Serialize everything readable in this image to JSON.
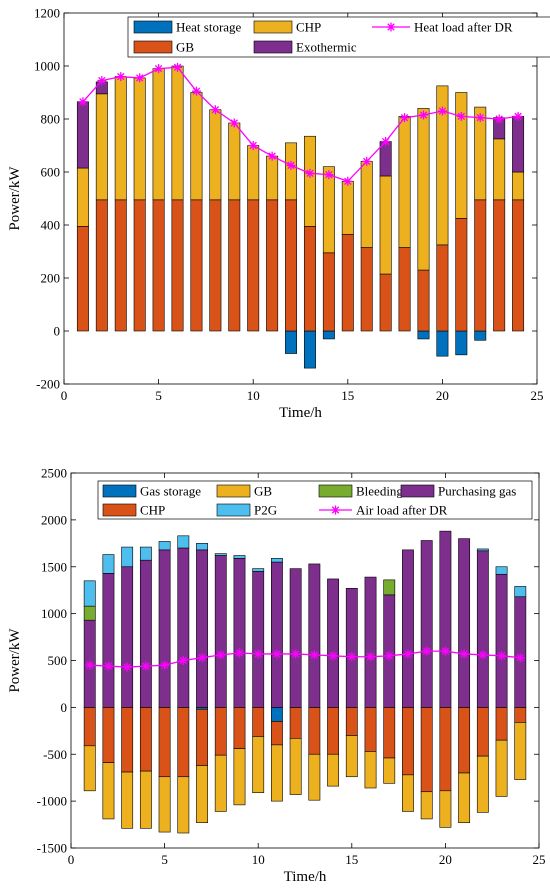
{
  "chart_data": [
    {
      "type": "bar",
      "stacked": true,
      "xlabel": "Time/h",
      "ylabel": "Power/kW",
      "xlim": [
        0,
        25
      ],
      "ylim": [
        -200,
        1200
      ],
      "xticks": [
        0,
        5,
        10,
        15,
        20,
        25
      ],
      "yticks": [
        -200,
        0,
        200,
        400,
        600,
        800,
        1000,
        1200
      ],
      "x": [
        1,
        2,
        3,
        4,
        5,
        6,
        7,
        8,
        9,
        10,
        11,
        12,
        13,
        14,
        15,
        16,
        17,
        18,
        19,
        20,
        21,
        22,
        23,
        24
      ],
      "legend_position": "top",
      "legend_rows": [
        [
          "Heat storage",
          "CHP",
          "Heat load after DR"
        ],
        [
          "GB",
          "Exothermic"
        ]
      ],
      "series": [
        {
          "name": "Heat storage",
          "color": "#0072BD",
          "values": [
            0,
            0,
            0,
            0,
            0,
            0,
            0,
            0,
            0,
            0,
            0,
            -85,
            -140,
            -30,
            0,
            0,
            0,
            0,
            -30,
            -95,
            -90,
            -35,
            0,
            0
          ]
        },
        {
          "name": "GB",
          "color": "#D95319",
          "values": [
            395,
            495,
            495,
            495,
            495,
            495,
            495,
            495,
            495,
            495,
            495,
            495,
            395,
            295,
            365,
            315,
            215,
            315,
            230,
            325,
            425,
            495,
            495,
            495
          ]
        },
        {
          "name": "CHP",
          "color": "#EDB120",
          "values": [
            220,
            400,
            465,
            460,
            495,
            505,
            405,
            340,
            290,
            205,
            165,
            215,
            340,
            325,
            200,
            325,
            370,
            495,
            610,
            600,
            475,
            350,
            230,
            105
          ]
        },
        {
          "name": "Exothermic",
          "color": "#7E2F8E",
          "values": [
            250,
            45,
            0,
            0,
            0,
            0,
            0,
            0,
            0,
            0,
            0,
            0,
            0,
            0,
            0,
            0,
            130,
            0,
            0,
            0,
            0,
            0,
            80,
            210
          ]
        }
      ],
      "line": {
        "name": "Heat load after DR",
        "color": "#FF00FF",
        "values": [
          865,
          945,
          960,
          955,
          990,
          995,
          905,
          835,
          785,
          700,
          660,
          625,
          595,
          590,
          565,
          640,
          715,
          805,
          815,
          830,
          810,
          805,
          800,
          810
        ]
      }
    },
    {
      "type": "bar",
      "stacked": true,
      "xlabel": "Time/h",
      "ylabel": "Power/kW",
      "xlim": [
        0,
        25
      ],
      "ylim": [
        -1500,
        2500
      ],
      "xticks": [
        0,
        5,
        10,
        15,
        20,
        25
      ],
      "yticks": [
        -1500,
        -1000,
        -500,
        0,
        500,
        1000,
        1500,
        2000,
        2500
      ],
      "x": [
        1,
        2,
        3,
        4,
        5,
        6,
        7,
        8,
        9,
        10,
        11,
        12,
        13,
        14,
        15,
        16,
        17,
        18,
        19,
        20,
        21,
        22,
        23,
        24
      ],
      "legend_position": "top",
      "legend_rows": [
        [
          "Gas storage",
          "GB",
          "Bleeding",
          "Purchasing gas"
        ],
        [
          "CHP",
          "P2G",
          "Air load after DR"
        ]
      ],
      "series": [
        {
          "name": "Gas storage",
          "color": "#0072BD",
          "values": [
            0,
            0,
            0,
            0,
            0,
            0,
            -20,
            0,
            0,
            0,
            -150,
            0,
            0,
            0,
            0,
            0,
            0,
            0,
            0,
            0,
            0,
            0,
            0,
            0
          ]
        },
        {
          "name": "CHP",
          "color": "#D95319",
          "values": [
            -410,
            -590,
            -690,
            -680,
            -740,
            -740,
            -600,
            -510,
            -440,
            -310,
            -250,
            -330,
            -500,
            -500,
            -300,
            -470,
            -540,
            -720,
            -900,
            -890,
            -700,
            -520,
            -350,
            -160
          ]
        },
        {
          "name": "GB",
          "color": "#EDB120",
          "values": [
            -480,
            -600,
            -600,
            -610,
            -590,
            -600,
            -610,
            -600,
            -600,
            -600,
            -600,
            -600,
            -490,
            -340,
            -440,
            -390,
            -270,
            -390,
            -290,
            -390,
            -530,
            -600,
            -600,
            -610
          ]
        },
        {
          "name": "Purchasing gas",
          "color": "#7E2F8E",
          "values": [
            930,
            1430,
            1500,
            1570,
            1680,
            1700,
            1680,
            1620,
            1590,
            1450,
            1550,
            1480,
            1530,
            1370,
            1270,
            1390,
            1200,
            1680,
            1780,
            1880,
            1800,
            1670,
            1420,
            1180
          ]
        },
        {
          "name": "Bleeding",
          "color": "#77AC30",
          "values": [
            150,
            0,
            0,
            0,
            0,
            0,
            0,
            0,
            0,
            0,
            0,
            0,
            0,
            0,
            0,
            0,
            160,
            0,
            0,
            0,
            0,
            0,
            0,
            0
          ]
        },
        {
          "name": "P2G",
          "color": "#4DBEEE",
          "values": [
            270,
            200,
            210,
            140,
            90,
            130,
            70,
            20,
            30,
            30,
            40,
            0,
            0,
            0,
            0,
            0,
            0,
            0,
            0,
            0,
            0,
            20,
            80,
            110
          ]
        }
      ],
      "line": {
        "name": "Air load after DR",
        "color": "#FF00FF",
        "values": [
          450,
          440,
          430,
          440,
          450,
          500,
          530,
          560,
          580,
          570,
          570,
          570,
          560,
          550,
          540,
          540,
          550,
          570,
          600,
          600,
          570,
          560,
          550,
          530
        ]
      }
    }
  ]
}
